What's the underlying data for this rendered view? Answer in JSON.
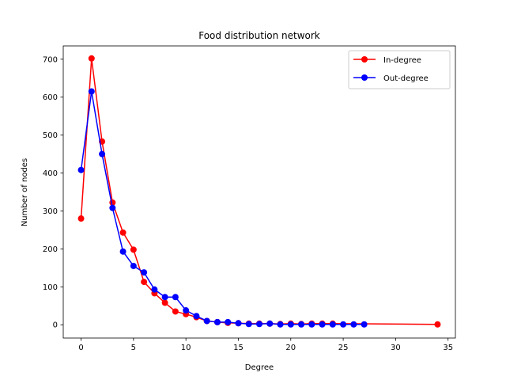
{
  "chart_data": {
    "type": "line",
    "title": "Food distribution network",
    "xlabel": "Degree",
    "ylabel": "Number of nodes",
    "xlim": [
      -1.7,
      35.7
    ],
    "ylim": [
      -35,
      735
    ],
    "xticks": [
      0,
      5,
      10,
      15,
      20,
      25,
      30,
      35
    ],
    "yticks": [
      0,
      100,
      200,
      300,
      400,
      500,
      600,
      700
    ],
    "grid": false,
    "legend_position": "top-right",
    "series": [
      {
        "name": "In-degree",
        "color": "#ff0000",
        "marker": "circle",
        "x": [
          0,
          1,
          2,
          3,
          4,
          5,
          6,
          7,
          8,
          9,
          10,
          11,
          12,
          13,
          14,
          15,
          16,
          17,
          18,
          19,
          20,
          21,
          22,
          23,
          24,
          34
        ],
        "y": [
          280,
          702,
          483,
          322,
          243,
          198,
          113,
          83,
          58,
          35,
          28,
          20,
          10,
          7,
          5,
          4,
          3,
          3,
          3,
          2,
          3,
          2,
          3,
          3,
          3,
          1
        ]
      },
      {
        "name": "Out-degree",
        "color": "#0000ff",
        "marker": "circle",
        "x": [
          0,
          1,
          2,
          3,
          4,
          5,
          6,
          7,
          8,
          9,
          10,
          11,
          12,
          13,
          14,
          15,
          16,
          17,
          18,
          19,
          20,
          21,
          22,
          23,
          24,
          25,
          26,
          27
        ],
        "y": [
          408,
          615,
          450,
          308,
          193,
          155,
          138,
          93,
          73,
          73,
          38,
          23,
          10,
          7,
          7,
          4,
          2,
          2,
          3,
          1,
          1,
          1,
          1,
          1,
          1,
          1,
          1,
          1
        ]
      }
    ]
  }
}
